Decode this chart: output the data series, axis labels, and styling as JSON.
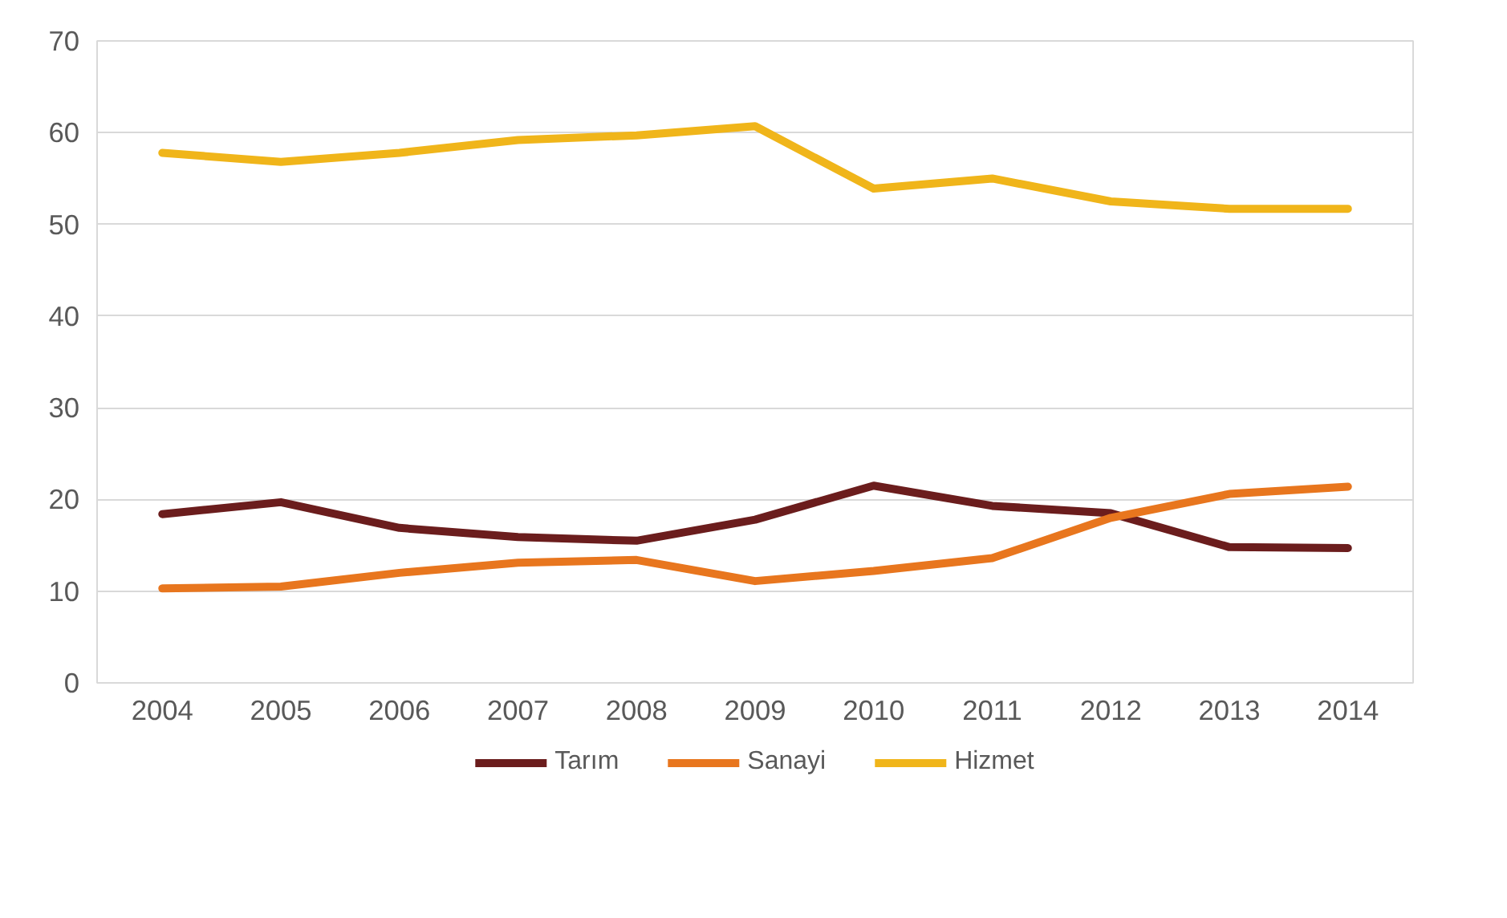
{
  "chart_data": {
    "type": "line",
    "x": [
      2004,
      2005,
      2006,
      2007,
      2008,
      2009,
      2010,
      2011,
      2012,
      2013,
      2014
    ],
    "xlim": [
      2003.45,
      2014.55
    ],
    "xticks": [
      2004,
      2005,
      2006,
      2007,
      2008,
      2009,
      2010,
      2011,
      2012,
      2013,
      2014
    ],
    "ylim": [
      0,
      70
    ],
    "yticks": [
      0,
      10,
      20,
      30,
      40,
      50,
      60,
      70
    ],
    "grid": "y",
    "legend": "bottom",
    "marker": "none",
    "line_style": "solid",
    "series": [
      {
        "name": "Tarım",
        "color": "#6b1d1d",
        "values": [
          18.4,
          19.7,
          16.9,
          15.9,
          15.5,
          17.8,
          21.5,
          19.3,
          18.5,
          14.8,
          14.7
        ]
      },
      {
        "name": "Sanayi",
        "color": "#e8761e",
        "values": [
          10.3,
          10.5,
          12.0,
          13.1,
          13.4,
          11.1,
          12.2,
          13.6,
          18.0,
          20.6,
          21.4
        ]
      },
      {
        "name": "Hizmet",
        "color": "#f0b51a",
        "values": [
          57.8,
          56.8,
          57.8,
          59.2,
          59.7,
          60.7,
          53.9,
          55.0,
          52.5,
          51.7,
          51.7
        ]
      }
    ]
  }
}
